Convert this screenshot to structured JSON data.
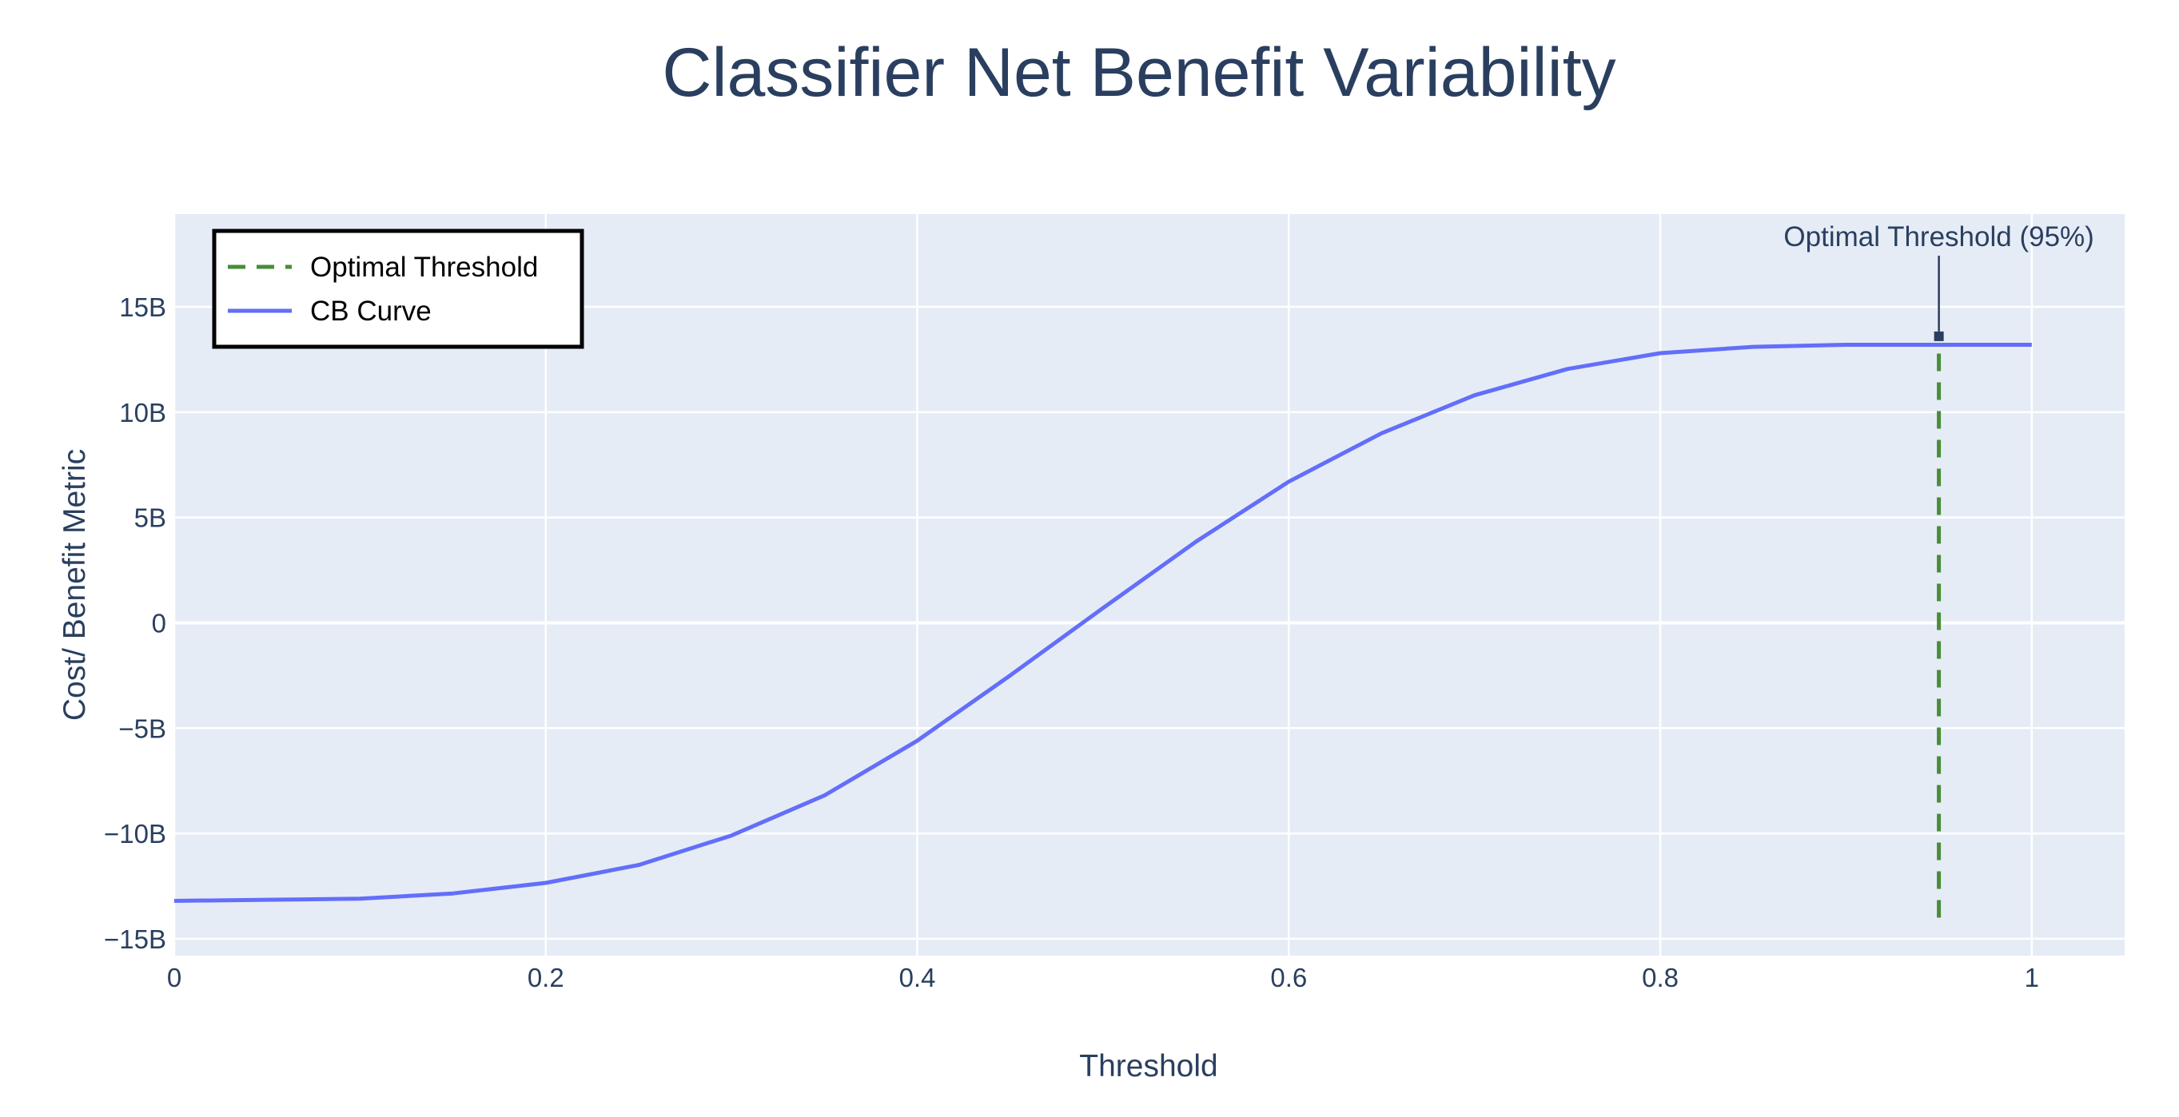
{
  "chart_data": {
    "type": "line",
    "title": "Classifier Net Benefit Variability",
    "xlabel": "Threshold",
    "ylabel": "Cost/ Benefit Metric",
    "xlim": [
      0,
      1.05
    ],
    "ylim": [
      -15.8,
      19.4
    ],
    "x_ticks": [
      {
        "value": 0,
        "label": "0"
      },
      {
        "value": 0.2,
        "label": "0.2"
      },
      {
        "value": 0.4,
        "label": "0.4"
      },
      {
        "value": 0.6,
        "label": "0.6"
      },
      {
        "value": 0.8,
        "label": "0.8"
      },
      {
        "value": 1,
        "label": "1"
      }
    ],
    "y_ticks": [
      {
        "value": -15,
        "label": "−15B"
      },
      {
        "value": -10,
        "label": "−10B"
      },
      {
        "value": -5,
        "label": "−5B"
      },
      {
        "value": 0,
        "label": "0"
      },
      {
        "value": 5,
        "label": "5B"
      },
      {
        "value": 10,
        "label": "10B"
      },
      {
        "value": 15,
        "label": "15B"
      }
    ],
    "grid": true,
    "legend_position": "top-left",
    "series": [
      {
        "name": "CB Curve",
        "style": "solid",
        "color": "#636efa",
        "x": [
          0,
          0.05,
          0.1,
          0.15,
          0.2,
          0.25,
          0.3,
          0.35,
          0.4,
          0.45,
          0.5,
          0.55,
          0.6,
          0.65,
          0.7,
          0.75,
          0.8,
          0.85,
          0.9,
          0.95,
          1.0
        ],
        "y": [
          -13.2,
          -13.15,
          -13.1,
          -12.85,
          -12.35,
          -11.5,
          -10.1,
          -8.2,
          -5.6,
          -2.5,
          0.7,
          3.85,
          6.7,
          9.0,
          10.8,
          12.05,
          12.8,
          13.1,
          13.2,
          13.2,
          13.2
        ]
      },
      {
        "name": "Optimal Threshold",
        "style": "dashed",
        "color": "#4a8c3a",
        "x": [
          0.95,
          0.95
        ],
        "y": [
          -14.0,
          13.2
        ]
      }
    ],
    "annotations": [
      {
        "text": "Optimal Threshold (95%)",
        "x": 0.95,
        "y": 13.6
      }
    ]
  }
}
